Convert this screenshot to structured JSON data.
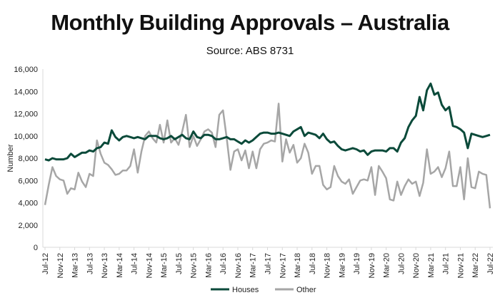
{
  "chart_data": {
    "type": "line",
    "title": "Monthly Building Approvals – Australia",
    "subtitle": "Source: ABS 8731",
    "xlabel": "",
    "ylabel": "Number",
    "ylim": [
      0,
      16000
    ],
    "yticks": [
      "0",
      "2,000",
      "4,000",
      "6,000",
      "8,000",
      "10,000",
      "12,000",
      "14,000",
      "16,000"
    ],
    "x_start": "Jul-12",
    "x_end": "Jul-22",
    "x_frequency": "monthly",
    "xtick_labels": [
      "Jul-12",
      "Nov-12",
      "Mar-13",
      "Jul-13",
      "Nov-13",
      "Mar-14",
      "Jul-14",
      "Nov-14",
      "Mar-15",
      "Jul-15",
      "Nov-15",
      "Mar-16",
      "Jul-16",
      "Nov-16",
      "Mar-17",
      "Jul-17",
      "Nov-17",
      "Mar-18",
      "Jul-18",
      "Nov-18",
      "Mar-19",
      "Jul-19",
      "Nov-19",
      "Mar-20",
      "Jul-20",
      "Nov-20",
      "Mar-21",
      "Jul-21",
      "Nov-21",
      "Mar-22",
      "Jul-22"
    ],
    "grid": false,
    "legend_position": "bottom",
    "series": [
      {
        "name": "Houses",
        "color": "#0b4a3a",
        "values": [
          7900,
          7800,
          8000,
          7900,
          7900,
          7900,
          8000,
          8400,
          8100,
          8300,
          8500,
          8500,
          8700,
          8600,
          8900,
          9000,
          9400,
          9300,
          10500,
          9900,
          9600,
          9900,
          10000,
          9900,
          9800,
          9900,
          9800,
          9700,
          10000,
          10000,
          10000,
          9800,
          9700,
          9800,
          10000,
          9700,
          9900,
          10100,
          9800,
          9700,
          10400,
          9900,
          9800,
          10100,
          10100,
          10000,
          9700,
          9700,
          9800,
          9900,
          9700,
          9700,
          9500,
          9300,
          9600,
          9400,
          9600,
          9900,
          10200,
          10300,
          10300,
          10200,
          10200,
          10300,
          10200,
          10100,
          10000,
          10400,
          10600,
          10800,
          10000,
          10300,
          10200,
          10100,
          9800,
          10200,
          9700,
          9400,
          9500,
          9100,
          8800,
          8700,
          8800,
          8900,
          8800,
          8600,
          8700,
          8300,
          8600,
          8700,
          8700,
          8700,
          8600,
          8900,
          8900,
          8600,
          9400,
          9800,
          10800,
          11400,
          11800,
          13500,
          12300,
          14100,
          14700,
          13700,
          13900,
          12800,
          12300,
          12600,
          10900,
          10800,
          10600,
          10300,
          8900,
          10200,
          10100,
          10000,
          9900,
          10000,
          10100
        ]
      },
      {
        "name": "Other",
        "color": "#a6a6a6",
        "values": [
          3800,
          5600,
          7200,
          6400,
          6100,
          6000,
          4800,
          5300,
          5200,
          6700,
          5900,
          5400,
          6600,
          6400,
          9600,
          8400,
          7600,
          7400,
          7000,
          6500,
          6600,
          6900,
          6900,
          7300,
          8800,
          6700,
          8600,
          10000,
          10400,
          9800,
          9400,
          11000,
          9400,
          11400,
          9400,
          9800,
          9200,
          10400,
          11900,
          9000,
          10000,
          9100,
          9700,
          10400,
          10600,
          10300,
          9000,
          11900,
          12300,
          9800,
          6950,
          8600,
          8800,
          7800,
          8700,
          7100,
          8600,
          7100,
          8800,
          9300,
          9400,
          9600,
          9500,
          12900,
          7700,
          9700,
          8500,
          9200,
          7600,
          8000,
          9300,
          8500,
          6600,
          7300,
          7300,
          5600,
          5200,
          5400,
          7300,
          6400,
          5900,
          5700,
          6100,
          4800,
          5400,
          6000,
          6100,
          6000,
          7200,
          4700,
          7300,
          6800,
          6200,
          4300,
          4200,
          5900,
          4700,
          5500,
          6100,
          5700,
          5900,
          4600,
          5800,
          8800,
          6600,
          6800,
          7200,
          6300,
          7100,
          8600,
          5500,
          5500,
          7200,
          4300,
          8000,
          5400,
          5300,
          6800,
          6600,
          6500,
          3500
        ]
      }
    ]
  }
}
